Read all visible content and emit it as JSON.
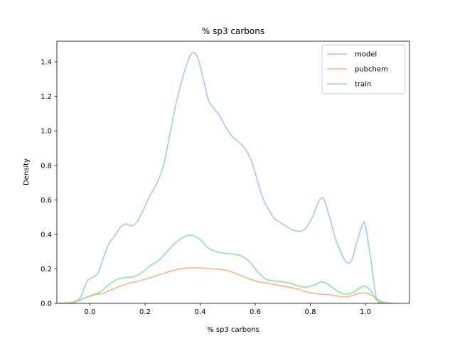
{
  "chart_data": {
    "type": "line",
    "title": "% sp3 carbons",
    "xlabel": "% sp3 carbons",
    "ylabel": "Density",
    "xlim": [
      -0.12,
      1.16
    ],
    "ylim": [
      0,
      1.52
    ],
    "xticks": [
      0.0,
      0.2,
      0.4,
      0.6,
      0.8,
      1.0
    ],
    "xtick_labels": [
      "0.0",
      "0.2",
      "0.4",
      "0.6",
      "0.8",
      "1.0"
    ],
    "yticks": [
      0.0,
      0.2,
      0.4,
      0.6,
      0.8,
      1.0,
      1.2,
      1.4
    ],
    "ytick_labels": [
      "0.0",
      "0.2",
      "0.4",
      "0.6",
      "0.8",
      "1.0",
      "1.2",
      "1.4"
    ],
    "grid": false,
    "legend_position": "top-right",
    "series": [
      {
        "name": "model",
        "color": "#a1c9f4",
        "points": [
          [
            -0.07,
            0.0
          ],
          [
            -0.05,
            0.01
          ],
          [
            -0.03,
            0.05
          ],
          [
            -0.01,
            0.13
          ],
          [
            0.01,
            0.15
          ],
          [
            0.03,
            0.18
          ],
          [
            0.05,
            0.27
          ],
          [
            0.07,
            0.35
          ],
          [
            0.09,
            0.39
          ],
          [
            0.11,
            0.44
          ],
          [
            0.13,
            0.46
          ],
          [
            0.15,
            0.45
          ],
          [
            0.17,
            0.47
          ],
          [
            0.19,
            0.53
          ],
          [
            0.21,
            0.6
          ],
          [
            0.23,
            0.66
          ],
          [
            0.25,
            0.72
          ],
          [
            0.27,
            0.82
          ],
          [
            0.29,
            0.98
          ],
          [
            0.31,
            1.14
          ],
          [
            0.33,
            1.27
          ],
          [
            0.35,
            1.38
          ],
          [
            0.37,
            1.45
          ],
          [
            0.39,
            1.43
          ],
          [
            0.41,
            1.31
          ],
          [
            0.43,
            1.18
          ],
          [
            0.45,
            1.13
          ],
          [
            0.47,
            1.09
          ],
          [
            0.49,
            1.03
          ],
          [
            0.51,
            0.98
          ],
          [
            0.53,
            0.95
          ],
          [
            0.55,
            0.92
          ],
          [
            0.57,
            0.88
          ],
          [
            0.59,
            0.81
          ],
          [
            0.61,
            0.7
          ],
          [
            0.63,
            0.6
          ],
          [
            0.65,
            0.54
          ],
          [
            0.67,
            0.49
          ],
          [
            0.69,
            0.47
          ],
          [
            0.71,
            0.45
          ],
          [
            0.73,
            0.43
          ],
          [
            0.75,
            0.42
          ],
          [
            0.77,
            0.42
          ],
          [
            0.79,
            0.45
          ],
          [
            0.81,
            0.51
          ],
          [
            0.83,
            0.59
          ],
          [
            0.84,
            0.61
          ],
          [
            0.85,
            0.6
          ],
          [
            0.87,
            0.5
          ],
          [
            0.89,
            0.38
          ],
          [
            0.91,
            0.3
          ],
          [
            0.93,
            0.24
          ],
          [
            0.95,
            0.25
          ],
          [
            0.97,
            0.36
          ],
          [
            0.99,
            0.46
          ],
          [
            1.0,
            0.45
          ],
          [
            1.02,
            0.25
          ],
          [
            1.04,
            0.03
          ],
          [
            1.06,
            0.0
          ]
        ]
      },
      {
        "name": "pubchem",
        "color": "#ffb482",
        "points": [
          [
            -0.11,
            0.0
          ],
          [
            -0.07,
            0.005
          ],
          [
            -0.04,
            0.02
          ],
          [
            -0.01,
            0.035
          ],
          [
            0.02,
            0.05
          ],
          [
            0.05,
            0.06
          ],
          [
            0.08,
            0.08
          ],
          [
            0.11,
            0.1
          ],
          [
            0.15,
            0.12
          ],
          [
            0.2,
            0.14
          ],
          [
            0.25,
            0.165
          ],
          [
            0.3,
            0.19
          ],
          [
            0.35,
            0.205
          ],
          [
            0.4,
            0.205
          ],
          [
            0.45,
            0.2
          ],
          [
            0.5,
            0.19
          ],
          [
            0.55,
            0.16
          ],
          [
            0.6,
            0.13
          ],
          [
            0.65,
            0.115
          ],
          [
            0.7,
            0.1
          ],
          [
            0.75,
            0.085
          ],
          [
            0.79,
            0.065
          ],
          [
            0.83,
            0.055
          ],
          [
            0.87,
            0.05
          ],
          [
            0.91,
            0.04
          ],
          [
            0.94,
            0.04
          ],
          [
            0.97,
            0.055
          ],
          [
            1.0,
            0.06
          ],
          [
            1.03,
            0.04
          ],
          [
            1.06,
            0.01
          ],
          [
            1.1,
            0.0
          ]
        ]
      },
      {
        "name": "train",
        "color": "#8de5a1",
        "points": [
          [
            -0.08,
            0.0
          ],
          [
            -0.05,
            0.01
          ],
          [
            -0.02,
            0.03
          ],
          [
            0.01,
            0.05
          ],
          [
            0.04,
            0.07
          ],
          [
            0.07,
            0.11
          ],
          [
            0.1,
            0.14
          ],
          [
            0.13,
            0.15
          ],
          [
            0.16,
            0.155
          ],
          [
            0.19,
            0.18
          ],
          [
            0.22,
            0.22
          ],
          [
            0.25,
            0.25
          ],
          [
            0.28,
            0.3
          ],
          [
            0.31,
            0.35
          ],
          [
            0.34,
            0.385
          ],
          [
            0.37,
            0.395
          ],
          [
            0.4,
            0.37
          ],
          [
            0.43,
            0.32
          ],
          [
            0.46,
            0.3
          ],
          [
            0.49,
            0.29
          ],
          [
            0.52,
            0.285
          ],
          [
            0.55,
            0.275
          ],
          [
            0.58,
            0.24
          ],
          [
            0.61,
            0.18
          ],
          [
            0.64,
            0.14
          ],
          [
            0.67,
            0.13
          ],
          [
            0.7,
            0.125
          ],
          [
            0.73,
            0.115
          ],
          [
            0.76,
            0.1
          ],
          [
            0.79,
            0.095
          ],
          [
            0.82,
            0.11
          ],
          [
            0.84,
            0.125
          ],
          [
            0.86,
            0.115
          ],
          [
            0.89,
            0.08
          ],
          [
            0.92,
            0.055
          ],
          [
            0.95,
            0.06
          ],
          [
            0.98,
            0.09
          ],
          [
            1.0,
            0.1
          ],
          [
            1.02,
            0.07
          ],
          [
            1.04,
            0.02
          ],
          [
            1.07,
            0.0
          ]
        ]
      }
    ]
  }
}
